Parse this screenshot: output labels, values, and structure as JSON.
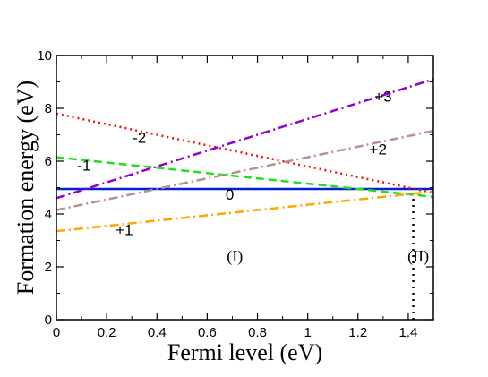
{
  "chart_data": {
    "type": "line",
    "xlabel": "Fermi level (eV)",
    "ylabel": "Formation energy (eV)",
    "xlim": [
      0,
      1.5
    ],
    "ylim": [
      0,
      10
    ],
    "x_ticks": [
      0,
      0.2,
      0.4,
      0.6,
      0.8,
      1,
      1.2,
      1.4
    ],
    "x_tick_labels": [
      "0",
      "0.2",
      "0.4",
      "0.6",
      "0.8",
      "1",
      "1.2",
      "1.4"
    ],
    "y_ticks": [
      0,
      2,
      4,
      6,
      8,
      10
    ],
    "y_tick_labels": [
      "0",
      "2",
      "4",
      "6",
      "8",
      "10"
    ],
    "grid": false,
    "series": [
      {
        "name": "0",
        "charge": 0,
        "color": "#0022cc",
        "dash": "solid",
        "x": [
          0,
          1.5
        ],
        "y": [
          4.95,
          4.95
        ]
      },
      {
        "name": "-1",
        "charge": -1,
        "color": "#22dd22",
        "dash": "dashed",
        "x": [
          0,
          1.5
        ],
        "y": [
          6.15,
          4.65
        ]
      },
      {
        "name": "-2",
        "charge": -2,
        "color": "#ee1111",
        "dash": "dotted",
        "x": [
          0,
          1.5
        ],
        "y": [
          7.8,
          4.8
        ]
      },
      {
        "name": "+1",
        "charge": 1,
        "color": "#ffa500",
        "dash": "dashdot",
        "x": [
          0,
          1.5
        ],
        "y": [
          3.35,
          4.85
        ]
      },
      {
        "name": "+2",
        "charge": 2,
        "color": "#b89090",
        "dash": "dashdot",
        "x": [
          0,
          1.5
        ],
        "y": [
          4.15,
          7.15
        ]
      },
      {
        "name": "+3",
        "charge": 3,
        "color": "#9400d3",
        "dash": "dashdot",
        "x": [
          0,
          1.5
        ],
        "y": [
          4.6,
          9.1
        ]
      }
    ],
    "line_labels": [
      {
        "text": "-2",
        "x": 0.33,
        "y": 6.9
      },
      {
        "text": "-1",
        "x": 0.11,
        "y": 5.85
      },
      {
        "text": "0",
        "x": 0.69,
        "y": 4.75
      },
      {
        "text": "+1",
        "x": 0.27,
        "y": 3.4
      },
      {
        "text": "+2",
        "x": 1.28,
        "y": 6.45
      },
      {
        "text": "+3",
        "x": 1.3,
        "y": 8.45
      }
    ],
    "vertical_marker": {
      "x": 1.42,
      "y_from": 0,
      "y_to": 4.8,
      "style": "dotted"
    },
    "annotations": [
      {
        "text": "(I)",
        "x": 0.71,
        "y": 2.4
      },
      {
        "text": "(II)",
        "x": 1.44,
        "y": 2.4
      }
    ]
  }
}
